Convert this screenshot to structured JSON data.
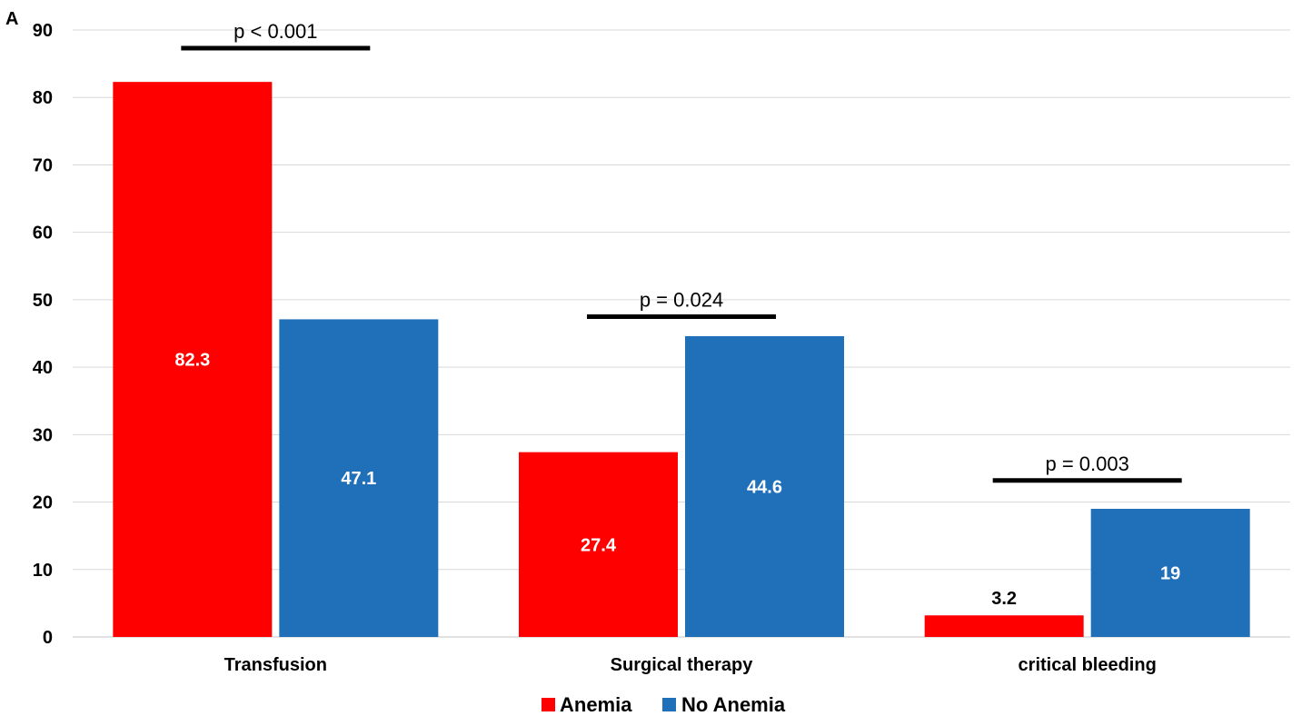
{
  "panel_letter": "A",
  "chart_data": {
    "type": "bar",
    "categories": [
      "Transfusion",
      "Surgical therapy",
      "critical bleeding"
    ],
    "series": [
      {
        "name": "Anemia",
        "values": [
          82.3,
          27.4,
          3.2
        ],
        "color": "#FF0000",
        "labels": [
          "82.3",
          "27.4",
          "3.2"
        ]
      },
      {
        "name": "No Anemia",
        "values": [
          47.1,
          44.6,
          19
        ],
        "color": "#1F70B8",
        "labels": [
          "47.1",
          "44.6",
          "19"
        ]
      }
    ],
    "ylim": [
      0,
      90
    ],
    "yticks": [
      0,
      10,
      20,
      30,
      40,
      50,
      60,
      70,
      80,
      90
    ],
    "grid": true,
    "legend": "bottom-center",
    "annotations": [
      {
        "text": "p < 0.001",
        "category": "Transfusion",
        "y": 87.3
      },
      {
        "text": "p = 0.024",
        "category": "Surgical therapy",
        "y": 47.5
      },
      {
        "text": "p = 0.003",
        "category": "critical bleeding",
        "y": 23.2
      }
    ]
  }
}
